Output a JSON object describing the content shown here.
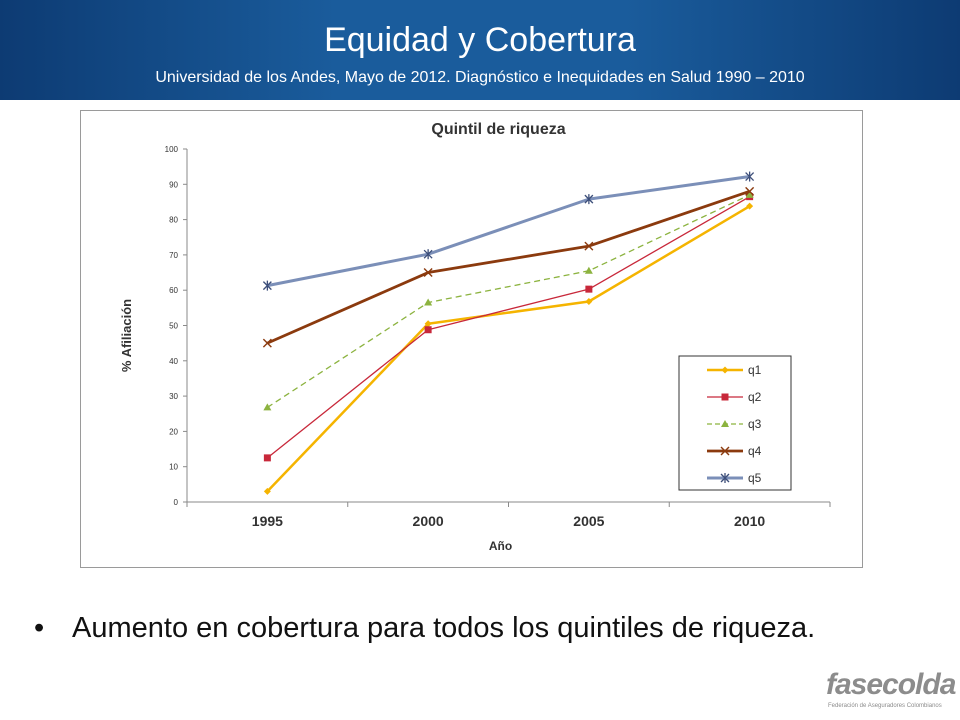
{
  "header": {
    "title": "Equidad y Cobertura",
    "subtitle": "Universidad de los Andes, Mayo de 2012. Diagnóstico e Inequidades en Salud 1990 – 2010"
  },
  "chart_data": {
    "type": "line",
    "title": "Quintil de riqueza",
    "xlabel": "Año",
    "ylabel": "% Afiliación",
    "categories": [
      "1995",
      "2000",
      "2005",
      "2010"
    ],
    "ylim": [
      0,
      100
    ],
    "yticks": [
      0,
      10,
      20,
      30,
      40,
      50,
      60,
      70,
      80,
      90,
      100
    ],
    "grid": false,
    "legend_position": "bottom-right",
    "series": [
      {
        "name": "q1",
        "values": [
          3,
          50.5,
          56.8,
          83.8
        ],
        "color": "#f5b400",
        "marker": "diamond",
        "dashed": false,
        "width": 2.5
      },
      {
        "name": "q2",
        "values": [
          12.5,
          48.8,
          60.3,
          86.5
        ],
        "color": "#c8283a",
        "marker": "square",
        "dashed": false,
        "width": 1.3
      },
      {
        "name": "q3",
        "values": [
          26.8,
          56.5,
          65.5,
          87
        ],
        "color": "#8cb33f",
        "marker": "triangle",
        "dashed": true,
        "width": 1.3
      },
      {
        "name": "q4",
        "values": [
          45,
          65,
          72.5,
          88
        ],
        "color": "#8b3a0e",
        "marker": "x",
        "dashed": false,
        "width": 2.8
      },
      {
        "name": "q5",
        "values": [
          61.3,
          70.2,
          85.8,
          92.2
        ],
        "color": "#7b8fb8",
        "marker": "asterisk",
        "dashed": false,
        "width": 3
      }
    ]
  },
  "bullets": [
    {
      "symbol": "•",
      "text": "Aumento en cobertura  para todos los quintiles de riqueza."
    }
  ],
  "logo": {
    "word": "fasecolda",
    "tagline": "Federación de Aseguradores Colombianos"
  }
}
